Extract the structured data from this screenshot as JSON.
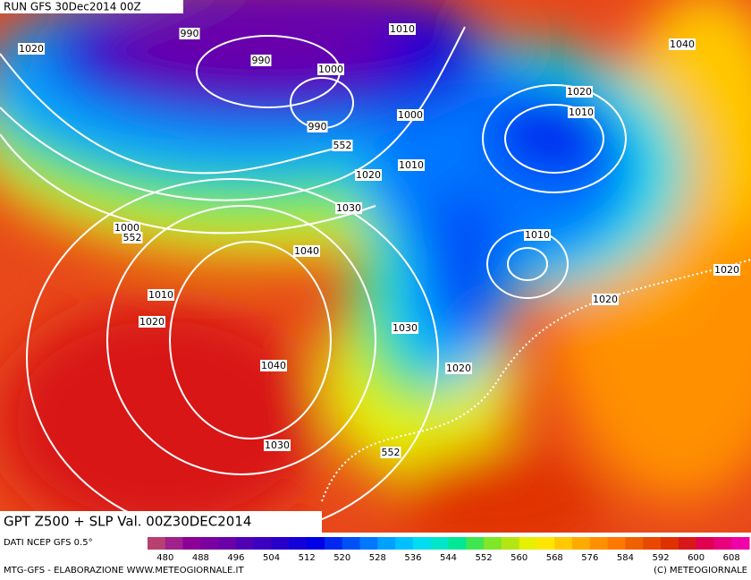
{
  "header": {
    "run": "RUN GFS 30Dec2014 00Z",
    "title": "GPT Z500 + SLP Val. 00Z30DEC2014",
    "source": "DATI NCEP GFS 0.5°",
    "credit": "MTG-GFS - ELABORAZIONE WWW.METEOGIORNALE.IT",
    "copyright": "(C) METEOGIORNALE"
  },
  "legend": {
    "ticks": [
      "480",
      "488",
      "496",
      "504",
      "512",
      "520",
      "528",
      "536",
      "544",
      "552",
      "560",
      "568",
      "576",
      "584",
      "592",
      "600",
      "608"
    ],
    "colors": [
      "#b84070",
      "#a0208c",
      "#8c0096",
      "#7a00a0",
      "#6a00a8",
      "#5000b4",
      "#3c00c0",
      "#2800cc",
      "#1400d8",
      "#0000e6",
      "#0028f0",
      "#0050f8",
      "#0078ff",
      "#00a0ff",
      "#00c0ff",
      "#00dcf0",
      "#00e6c8",
      "#00e896",
      "#40e650",
      "#80e628",
      "#b4e614",
      "#e6f000",
      "#ffe600",
      "#ffc800",
      "#ffaa00",
      "#ff9000",
      "#ff7800",
      "#f06000",
      "#e84800",
      "#e03000",
      "#d81818",
      "#e00050",
      "#e8007c",
      "#f000a8"
    ]
  },
  "contour_labels": [
    "1020",
    "990",
    "990",
    "1000",
    "1010",
    "1040",
    "1020",
    "1010",
    "1000",
    "990",
    "552",
    "1010",
    "1020",
    "1030",
    "1000",
    "552",
    "1040",
    "1010",
    "1020",
    "1010",
    "1020",
    "1020",
    "1030",
    "1040",
    "1020",
    "1030",
    "552"
  ]
}
